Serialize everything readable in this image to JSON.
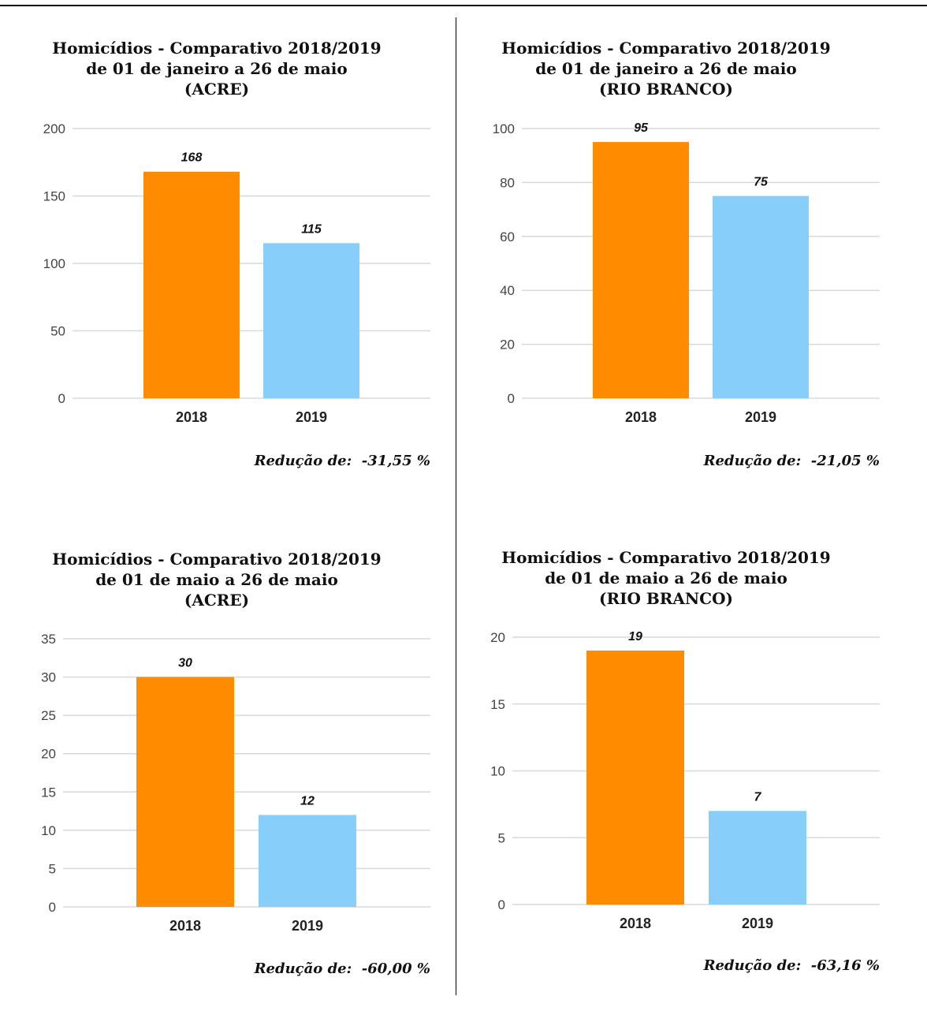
{
  "colors": {
    "bar_2018": "#FF8C00",
    "bar_2019": "#87CEFA",
    "grid": "#d9d9d9"
  },
  "chart_data": [
    {
      "type": "bar",
      "title": [
        "Homicídios - Comparativo 2018/2019",
        "de 01 de janeiro a 26 de maio",
        "(ACRE)"
      ],
      "categories": [
        "2018",
        "2019"
      ],
      "values": [
        168,
        115
      ],
      "data_labels": [
        "168",
        "115"
      ],
      "ylim": [
        0,
        200
      ],
      "yticks": [
        0,
        50,
        100,
        150,
        200
      ],
      "grid": true,
      "note": "Redução de:  -31,55 %"
    },
    {
      "type": "bar",
      "title": [
        "Homicídios - Comparativo 2018/2019",
        "de 01 de janeiro a 26 de maio",
        "(RIO BRANCO)"
      ],
      "categories": [
        "2018",
        "2019"
      ],
      "values": [
        95,
        75
      ],
      "data_labels": [
        "95",
        "75"
      ],
      "ylim": [
        0,
        100
      ],
      "yticks": [
        0,
        20,
        40,
        60,
        80,
        100
      ],
      "grid": true,
      "note": "Redução de:  -21,05 %"
    },
    {
      "type": "bar",
      "title": [
        "Homicídios - Comparativo 2018/2019",
        "de 01 de maio a 26 de maio",
        "(ACRE)"
      ],
      "categories": [
        "2018",
        "2019"
      ],
      "values": [
        30,
        12
      ],
      "data_labels": [
        "30",
        "12"
      ],
      "ylim": [
        0,
        35
      ],
      "yticks": [
        0,
        5,
        10,
        15,
        20,
        25,
        30,
        35
      ],
      "grid": true,
      "note": "Redução de:  -60,00 %"
    },
    {
      "type": "bar",
      "title": [
        "Homicídios - Comparativo 2018/2019",
        "de 01 de maio a 26 de maio",
        "(RIO BRANCO)"
      ],
      "categories": [
        "2018",
        "2019"
      ],
      "values": [
        19,
        7
      ],
      "data_labels": [
        "19",
        "7"
      ],
      "ylim": [
        0,
        20
      ],
      "yticks": [
        0,
        5,
        10,
        15,
        20
      ],
      "grid": true,
      "note": "Redução de:  -63,16 %"
    }
  ]
}
